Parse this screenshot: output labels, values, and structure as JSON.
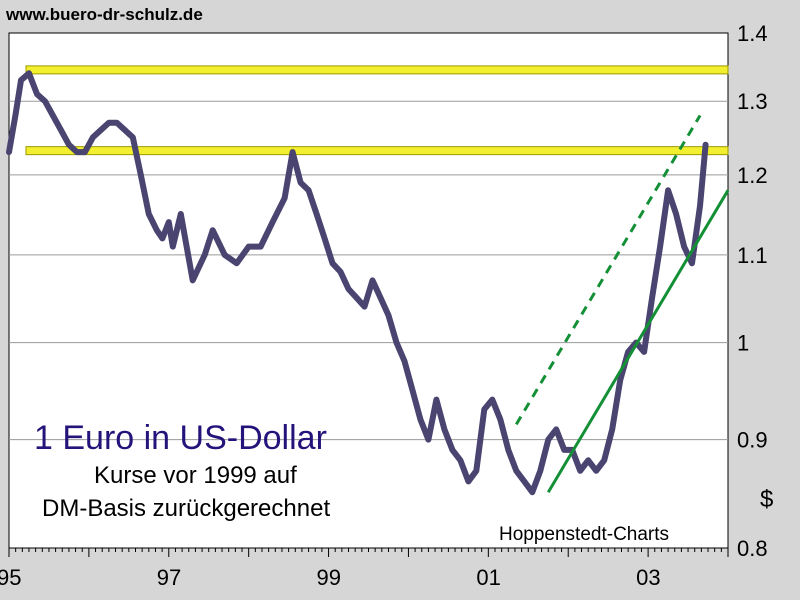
{
  "header": {
    "site_url": "www.buero-dr-schulz.de"
  },
  "colors": {
    "plot_background": "#ffffff",
    "frame_background": "#d6d6d6",
    "price_line": "#4a4470",
    "resistance_band": "#f2ef2e",
    "resistance_band_border": "#9c9a00",
    "trend_line": "#139036",
    "title": "#24137a"
  },
  "chart_data": {
    "type": "line",
    "title": "1 Euro in US-Dollar",
    "subtitle_lines": [
      "Kurse vor 1999 auf",
      "DM-Basis zurückgerechnet"
    ],
    "source": "Hoppenstedt-Charts",
    "ylabel": "$",
    "xlabel": "",
    "y_scale": "log",
    "xlim": [
      1995.0,
      2004.0
    ],
    "ylim": [
      0.8,
      1.4
    ],
    "x_ticks": [
      1995,
      1997,
      1999,
      2001,
      2003
    ],
    "x_tick_labels": [
      "95",
      "97",
      "99",
      "01",
      "03"
    ],
    "y_ticks": [
      0.8,
      0.9,
      1.0,
      1.1,
      1.2,
      1.3,
      1.4
    ],
    "y_tick_labels": [
      "0.8",
      "0.9",
      "1",
      "1.1",
      "1.2",
      "1.3",
      "1.4"
    ],
    "grid": "horizontal",
    "series": [
      {
        "x": [
          1995.0,
          1995.08,
          1995.15,
          1995.25,
          1995.35,
          1995.45,
          1995.55,
          1995.65,
          1995.75,
          1995.85,
          1995.95,
          1996.05,
          1996.15,
          1996.25,
          1996.35,
          1996.45,
          1996.55,
          1996.65,
          1996.75,
          1996.85,
          1996.92,
          1997.0,
          1997.05,
          1997.15,
          1997.3,
          1997.45,
          1997.55,
          1997.7,
          1997.85,
          1998.0,
          1998.15,
          1998.3,
          1998.45,
          1998.55,
          1998.65,
          1998.75,
          1998.85,
          1998.95,
          1999.05,
          1999.15,
          1999.25,
          1999.35,
          1999.45,
          1999.55,
          1999.65,
          1999.75,
          1999.85,
          1999.95,
          2000.05,
          2000.15,
          2000.25,
          2000.35,
          2000.45,
          2000.55,
          2000.65,
          2000.75,
          2000.85,
          2000.95,
          2001.05,
          2001.15,
          2001.25,
          2001.35,
          2001.45,
          2001.55,
          2001.65,
          2001.75,
          2001.85,
          2001.95,
          2002.05,
          2002.15,
          2002.25,
          2002.35,
          2002.45,
          2002.55,
          2002.65,
          2002.75,
          2002.85,
          2002.95,
          2003.05,
          2003.15,
          2003.25,
          2003.35,
          2003.45,
          2003.55,
          2003.65,
          2003.72
        ],
        "values": [
          1.23,
          1.28,
          1.33,
          1.34,
          1.31,
          1.3,
          1.28,
          1.26,
          1.24,
          1.23,
          1.23,
          1.25,
          1.26,
          1.27,
          1.27,
          1.26,
          1.25,
          1.2,
          1.15,
          1.13,
          1.12,
          1.14,
          1.11,
          1.15,
          1.07,
          1.1,
          1.13,
          1.1,
          1.09,
          1.11,
          1.11,
          1.14,
          1.17,
          1.23,
          1.19,
          1.18,
          1.15,
          1.12,
          1.09,
          1.08,
          1.06,
          1.05,
          1.04,
          1.07,
          1.05,
          1.03,
          1.0,
          0.98,
          0.95,
          0.92,
          0.9,
          0.94,
          0.91,
          0.89,
          0.88,
          0.86,
          0.87,
          0.93,
          0.94,
          0.92,
          0.89,
          0.87,
          0.86,
          0.85,
          0.87,
          0.9,
          0.91,
          0.89,
          0.89,
          0.87,
          0.88,
          0.87,
          0.88,
          0.91,
          0.96,
          0.99,
          1.0,
          0.99,
          1.05,
          1.11,
          1.18,
          1.15,
          1.11,
          1.09,
          1.16,
          1.24
        ]
      }
    ],
    "resistance_levels": [
      1.345,
      1.232
    ],
    "trend_lines": [
      {
        "style": "solid",
        "x": [
          2001.75,
          2004.0
        ],
        "values": [
          0.85,
          1.18
        ]
      },
      {
        "style": "dashed",
        "x": [
          2001.35,
          2003.65
        ],
        "values": [
          0.915,
          1.28
        ]
      }
    ]
  }
}
